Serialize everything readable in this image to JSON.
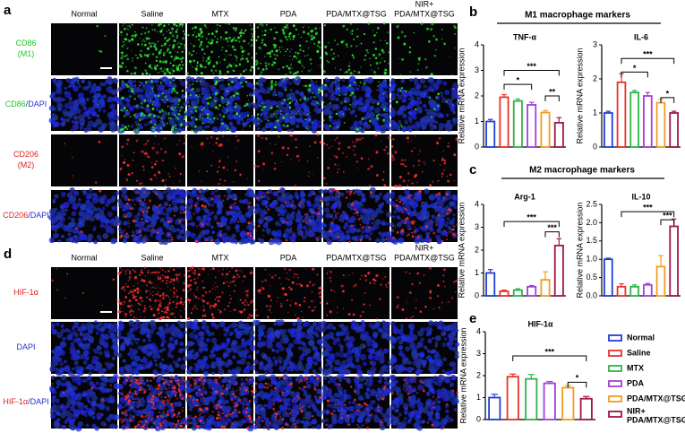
{
  "panel_a": {
    "label": "a",
    "columns": [
      [
        "Normal"
      ],
      [
        "Saline"
      ],
      [
        "MTX"
      ],
      [
        "PDA"
      ],
      [
        "PDA/MTX@TSG"
      ],
      [
        "NIR+",
        "PDA/MTX@TSG"
      ]
    ],
    "rows": [
      [
        [
          {
            "text": "CD86",
            "color": "#22c822"
          }
        ],
        [
          {
            "text": "(M1)",
            "color": "#22c822"
          }
        ]
      ],
      [
        [
          {
            "text": "CD86",
            "color": "#22c822"
          },
          {
            "text": "/DAPI",
            "color": "#2233cc"
          }
        ]
      ],
      [
        [
          {
            "text": "CD206",
            "color": "#e02020"
          }
        ],
        [
          {
            "text": "(M2)",
            "color": "#e02020"
          }
        ]
      ],
      [
        [
          {
            "text": "CD206",
            "color": "#e02020"
          },
          {
            "text": "/DAPI",
            "color": "#2233cc"
          }
        ]
      ]
    ]
  },
  "panel_d": {
    "label": "d",
    "columns": [
      [
        "Normal"
      ],
      [
        "Saline"
      ],
      [
        "MTX"
      ],
      [
        "PDA"
      ],
      [
        "PDA/MTX@TSG"
      ],
      [
        "NIR+",
        "PDA/MTX@TSG"
      ]
    ],
    "rows": [
      [
        [
          {
            "text": "HIF-1α",
            "color": "#e02020"
          }
        ]
      ],
      [
        [
          {
            "text": "DAPI",
            "color": "#2233cc"
          }
        ]
      ],
      [
        [
          {
            "text": "HIF-1α",
            "color": "#e02020"
          },
          {
            "text": "/DAPI",
            "color": "#2233cc"
          }
        ]
      ]
    ]
  },
  "panel_b": {
    "label": "b",
    "header": "M1 macrophage markers"
  },
  "panel_c": {
    "label": "c",
    "header": "M2 macrophage markers"
  },
  "panel_e": {
    "label": "e"
  },
  "legend": {
    "categories": [
      [
        "Normal"
      ],
      [
        "Saline"
      ],
      [
        "MTX"
      ],
      [
        "PDA"
      ],
      [
        "PDA/MTX@TSG"
      ],
      [
        "NIR+",
        "PDA/MTX@TSG"
      ]
    ],
    "colors": [
      "#1f3fd6",
      "#e8312a",
      "#2db34a",
      "#a43ddb",
      "#f39c1f",
      "#a0154a"
    ]
  },
  "chart_data": [
    {
      "type": "bar",
      "title": "TNF-α",
      "ylabel": "Relative mRNA expression",
      "values": [
        1.0,
        1.95,
        1.8,
        1.65,
        1.35,
        0.95
      ],
      "errors": [
        0.08,
        0.1,
        0.08,
        0.1,
        0.08,
        0.2
      ],
      "ylim": [
        0,
        4
      ],
      "yticks": [
        0,
        1,
        2,
        3,
        4
      ],
      "annotations": [
        "***",
        "*",
        "**"
      ]
    },
    {
      "type": "bar",
      "title": "IL-6",
      "ylabel": "Relative mRNA expression",
      "values": [
        1.0,
        1.9,
        1.6,
        1.5,
        1.3,
        1.0
      ],
      "errors": [
        0.05,
        0.25,
        0.06,
        0.1,
        0.1,
        0.05
      ],
      "ylim": [
        0,
        3
      ],
      "yticks": [
        0,
        1,
        2,
        3
      ],
      "annotations": [
        "***",
        "*",
        "*"
      ]
    },
    {
      "type": "bar",
      "title": "Arg-1",
      "ylabel": "Relative mRNA expression",
      "values": [
        1.0,
        0.2,
        0.25,
        0.4,
        0.7,
        2.2
      ],
      "errors": [
        0.15,
        0.05,
        0.06,
        0.05,
        0.35,
        0.3
      ],
      "ylim": [
        0,
        4
      ],
      "yticks": [
        0,
        1,
        2,
        3,
        4
      ],
      "annotations": [
        "***",
        "***"
      ]
    },
    {
      "type": "bar",
      "title": "IL-10",
      "ylabel": "Relative mRNA expression",
      "values": [
        1.0,
        0.25,
        0.25,
        0.3,
        0.8,
        1.9
      ],
      "errors": [
        0.03,
        0.08,
        0.05,
        0.04,
        0.3,
        0.2
      ],
      "ylim": [
        0,
        2.5
      ],
      "yticks": [
        {
          "value": 0,
          "label": "0.0"
        },
        {
          "value": 0.5,
          "label": "0.5"
        },
        {
          "value": 1,
          "label": "1.0"
        },
        {
          "value": 1.5,
          "label": "1.5"
        },
        {
          "value": 2,
          "label": "2.0"
        },
        {
          "value": 2.5,
          "label": "2.5"
        }
      ],
      "annotations": [
        "***",
        "***"
      ]
    },
    {
      "type": "bar",
      "title": "HIF-1α",
      "ylabel": "Relative mRNA expression",
      "values": [
        1.0,
        1.95,
        1.85,
        1.65,
        1.45,
        0.95
      ],
      "errors": [
        0.15,
        0.12,
        0.2,
        0.08,
        0.1,
        0.1
      ],
      "ylim": [
        0,
        4
      ],
      "yticks": [
        0,
        1,
        2,
        3,
        4
      ],
      "annotations": [
        "***",
        "*"
      ]
    }
  ]
}
